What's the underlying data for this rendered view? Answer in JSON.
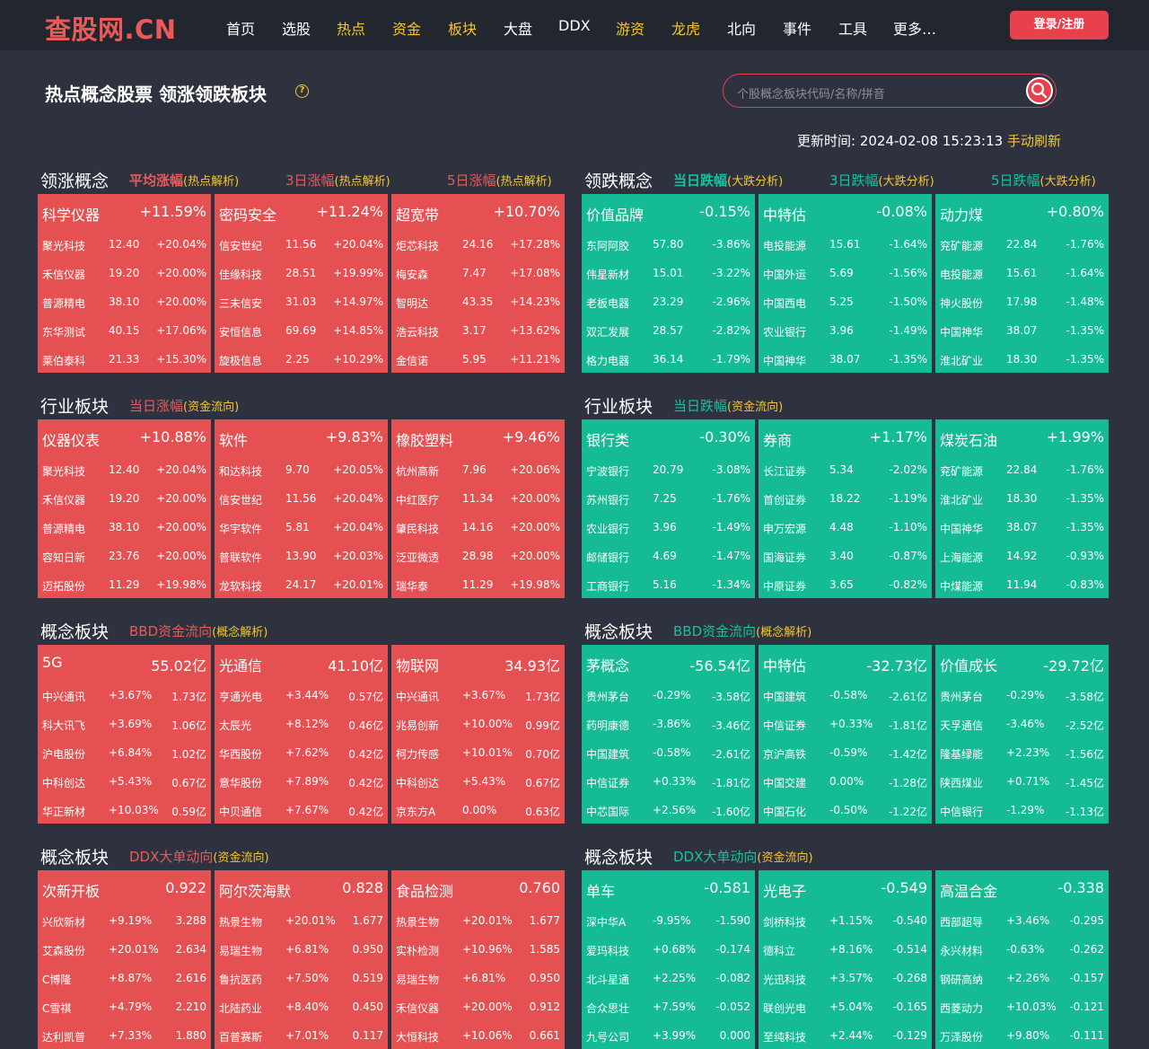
{
  "header": {
    "logo": "查股网.CN",
    "nav": [
      {
        "label": "首页",
        "hot": false
      },
      {
        "label": "选股",
        "hot": false
      },
      {
        "label": "热点",
        "hot": true
      },
      {
        "label": "资金",
        "hot": true
      },
      {
        "label": "板块",
        "hot": true
      },
      {
        "label": "大盘",
        "hot": false
      },
      {
        "label": "DDX",
        "hot": false
      },
      {
        "label": "游资",
        "hot": true
      },
      {
        "label": "龙虎",
        "hot": true
      },
      {
        "label": "北向",
        "hot": false
      },
      {
        "label": "事件",
        "hot": false
      },
      {
        "label": "工具",
        "hot": false
      },
      {
        "label": "更多…",
        "hot": false
      }
    ],
    "login": "登录/注册"
  },
  "page": {
    "title": "热点概念股票 领涨领跌板块",
    "help": "?",
    "search_placeholder": "个股概念板块代码/名称/拼音",
    "update_label": "更新时间:",
    "update_time": "2024-02-08 15:23:13",
    "refresh": "手动刷新"
  },
  "sections": [
    {
      "title": "领涨概念",
      "color": "r",
      "subs": [
        {
          "text": "平均涨幅",
          "bold": true,
          "link": "(热点解析)"
        },
        {
          "text": "3日涨幅",
          "bold": false,
          "link": "(热点解析)"
        },
        {
          "text": "5日涨幅",
          "bold": false,
          "link": "(热点解析)"
        }
      ],
      "cards": [
        {
          "name": "科学仪器",
          "value": "+11.59%",
          "rows": [
            [
              "聚光科技",
              "12.40",
              "+20.04%"
            ],
            [
              "禾信仪器",
              "19.20",
              "+20.00%"
            ],
            [
              "普源精电",
              "38.10",
              "+20.00%"
            ],
            [
              "东华测试",
              "40.15",
              "+17.06%"
            ],
            [
              "莱伯泰科",
              "21.33",
              "+15.30%"
            ]
          ]
        },
        {
          "name": "密码安全",
          "value": "+11.24%",
          "rows": [
            [
              "信安世纪",
              "11.56",
              "+20.04%"
            ],
            [
              "佳缘科技",
              "28.51",
              "+19.99%"
            ],
            [
              "三未信安",
              "31.03",
              "+14.97%"
            ],
            [
              "安恒信息",
              "69.69",
              "+14.85%"
            ],
            [
              "旋极信息",
              "2.25",
              "+10.29%"
            ]
          ]
        },
        {
          "name": "超宽带",
          "value": "+10.70%",
          "rows": [
            [
              "炬芯科技",
              "24.16",
              "+17.28%"
            ],
            [
              "梅安森",
              "7.47",
              "+17.08%"
            ],
            [
              "智明达",
              "43.35",
              "+14.23%"
            ],
            [
              "浩云科技",
              "3.17",
              "+13.62%"
            ],
            [
              "金信诺",
              "5.95",
              "+11.21%"
            ]
          ]
        }
      ]
    },
    {
      "title": "领跌概念",
      "color": "g",
      "subs": [
        {
          "text": "当日跌幅",
          "bold": true,
          "link": "(大跌分析)"
        },
        {
          "text": "3日跌幅",
          "bold": false,
          "link": "(大跌分析)"
        },
        {
          "text": "5日跌幅",
          "bold": false,
          "link": "(大跌分析)"
        }
      ],
      "cards": [
        {
          "name": "价值品牌",
          "value": "-0.15%",
          "rows": [
            [
              "东阿阿胶",
              "57.80",
              "-3.86%"
            ],
            [
              "伟星新材",
              "15.01",
              "-3.22%"
            ],
            [
              "老板电器",
              "23.29",
              "-2.96%"
            ],
            [
              "双汇发展",
              "28.57",
              "-2.82%"
            ],
            [
              "格力电器",
              "36.14",
              "-1.79%"
            ]
          ]
        },
        {
          "name": "中特估",
          "value": "-0.08%",
          "rows": [
            [
              "电投能源",
              "15.61",
              "-1.64%"
            ],
            [
              "中国外运",
              "5.69",
              "-1.56%"
            ],
            [
              "中国西电",
              "5.25",
              "-1.50%"
            ],
            [
              "农业银行",
              "3.96",
              "-1.49%"
            ],
            [
              "中国神华",
              "38.07",
              "-1.35%"
            ]
          ]
        },
        {
          "name": "动力煤",
          "value": "+0.80%",
          "rows": [
            [
              "兖矿能源",
              "22.84",
              "-1.76%"
            ],
            [
              "电投能源",
              "15.61",
              "-1.64%"
            ],
            [
              "神火股份",
              "17.98",
              "-1.48%"
            ],
            [
              "中国神华",
              "38.07",
              "-1.35%"
            ],
            [
              "淮北矿业",
              "18.30",
              "-1.35%"
            ]
          ]
        }
      ]
    },
    {
      "title": "行业板块",
      "color": "r",
      "subs": [
        {
          "text": "当日涨幅",
          "bold": false,
          "link": "(资金流向)"
        }
      ],
      "cards": [
        {
          "name": "仪器仪表",
          "value": "+10.88%",
          "rows": [
            [
              "聚光科技",
              "12.40",
              "+20.04%"
            ],
            [
              "禾信仪器",
              "19.20",
              "+20.00%"
            ],
            [
              "普源精电",
              "38.10",
              "+20.00%"
            ],
            [
              "容知日新",
              "23.76",
              "+20.00%"
            ],
            [
              "迈拓股份",
              "11.29",
              "+19.98%"
            ]
          ]
        },
        {
          "name": "软件",
          "value": "+9.83%",
          "rows": [
            [
              "和达科技",
              "9.70",
              "+20.05%"
            ],
            [
              "信安世纪",
              "11.56",
              "+20.04%"
            ],
            [
              "华宇软件",
              "5.81",
              "+20.04%"
            ],
            [
              "普联软件",
              "13.90",
              "+20.03%"
            ],
            [
              "龙软科技",
              "24.17",
              "+20.01%"
            ]
          ]
        },
        {
          "name": "橡胶塑料",
          "value": "+9.46%",
          "rows": [
            [
              "杭州高新",
              "7.96",
              "+20.06%"
            ],
            [
              "中红医疗",
              "11.34",
              "+20.00%"
            ],
            [
              "肇民科技",
              "14.16",
              "+20.00%"
            ],
            [
              "泛亚微透",
              "28.98",
              "+20.00%"
            ],
            [
              "瑞华泰",
              "11.29",
              "+19.98%"
            ]
          ]
        }
      ]
    },
    {
      "title": "行业板块",
      "color": "g",
      "subs": [
        {
          "text": "当日跌幅",
          "bold": false,
          "link": "(资金流向)"
        }
      ],
      "cards": [
        {
          "name": "银行类",
          "value": "-0.30%",
          "rows": [
            [
              "宁波银行",
              "20.79",
              "-3.08%"
            ],
            [
              "苏州银行",
              "7.25",
              "-1.76%"
            ],
            [
              "农业银行",
              "3.96",
              "-1.49%"
            ],
            [
              "邮储银行",
              "4.69",
              "-1.47%"
            ],
            [
              "工商银行",
              "5.16",
              "-1.34%"
            ]
          ]
        },
        {
          "name": "券商",
          "value": "+1.17%",
          "rows": [
            [
              "长江证券",
              "5.34",
              "-2.02%"
            ],
            [
              "首创证券",
              "18.22",
              "-1.19%"
            ],
            [
              "申万宏源",
              "4.48",
              "-1.10%"
            ],
            [
              "国海证券",
              "3.40",
              "-0.87%"
            ],
            [
              "中原证券",
              "3.65",
              "-0.82%"
            ]
          ]
        },
        {
          "name": "煤炭石油",
          "value": "+1.99%",
          "rows": [
            [
              "兖矿能源",
              "22.84",
              "-1.76%"
            ],
            [
              "淮北矿业",
              "18.30",
              "-1.35%"
            ],
            [
              "中国神华",
              "38.07",
              "-1.35%"
            ],
            [
              "上海能源",
              "14.92",
              "-0.93%"
            ],
            [
              "中煤能源",
              "11.94",
              "-0.83%"
            ]
          ]
        }
      ]
    },
    {
      "title": "概念板块",
      "color": "r",
      "subs": [
        {
          "text": "BBD资金流向",
          "bold": false,
          "link": "(概念解析)"
        }
      ],
      "cards": [
        {
          "name": "5G",
          "value": "55.02亿",
          "rows": [
            [
              "中兴通讯",
              "+3.67%",
              "1.73亿"
            ],
            [
              "科大讯飞",
              "+3.69%",
              "1.06亿"
            ],
            [
              "沪电股份",
              "+6.84%",
              "1.02亿"
            ],
            [
              "中科创达",
              "+5.43%",
              "0.67亿"
            ],
            [
              "华正新材",
              "+10.03%",
              "0.59亿"
            ]
          ]
        },
        {
          "name": "光通信",
          "value": "41.10亿",
          "rows": [
            [
              "亨通光电",
              "+3.44%",
              "0.57亿"
            ],
            [
              "太辰光",
              "+8.12%",
              "0.46亿"
            ],
            [
              "华西股份",
              "+7.62%",
              "0.42亿"
            ],
            [
              "意华股份",
              "+7.89%",
              "0.42亿"
            ],
            [
              "中贝通信",
              "+7.67%",
              "0.42亿"
            ]
          ]
        },
        {
          "name": "物联网",
          "value": "34.93亿",
          "rows": [
            [
              "中兴通讯",
              "+3.67%",
              "1.73亿"
            ],
            [
              "兆易创新",
              "+10.00%",
              "0.99亿"
            ],
            [
              "柯力传感",
              "+10.01%",
              "0.70亿"
            ],
            [
              "中科创达",
              "+5.43%",
              "0.67亿"
            ],
            [
              "京东方A",
              "0.00%",
              "0.63亿"
            ]
          ]
        }
      ]
    },
    {
      "title": "概念板块",
      "color": "g",
      "subs": [
        {
          "text": "BBD资金流向",
          "bold": false,
          "link": "(概念解析)"
        }
      ],
      "cards": [
        {
          "name": "茅概念",
          "value": "-56.54亿",
          "rows": [
            [
              "贵州茅台",
              "-0.29%",
              "-3.58亿"
            ],
            [
              "药明康德",
              "-3.86%",
              "-3.46亿"
            ],
            [
              "中国建筑",
              "-0.58%",
              "-2.61亿"
            ],
            [
              "中信证券",
              "+0.33%",
              "-1.81亿"
            ],
            [
              "中芯国际",
              "+2.56%",
              "-1.60亿"
            ]
          ]
        },
        {
          "name": "中特估",
          "value": "-32.73亿",
          "rows": [
            [
              "中国建筑",
              "-0.58%",
              "-2.61亿"
            ],
            [
              "中信证券",
              "+0.33%",
              "-1.81亿"
            ],
            [
              "京沪高铁",
              "-0.59%",
              "-1.42亿"
            ],
            [
              "中国交建",
              "0.00%",
              "-1.28亿"
            ],
            [
              "中国石化",
              "-0.50%",
              "-1.22亿"
            ]
          ]
        },
        {
          "name": "价值成长",
          "value": "-29.72亿",
          "rows": [
            [
              "贵州茅台",
              "-0.29%",
              "-3.58亿"
            ],
            [
              "天孚通信",
              "-3.46%",
              "-2.52亿"
            ],
            [
              "隆基绿能",
              "+2.23%",
              "-1.56亿"
            ],
            [
              "陕西煤业",
              "+0.71%",
              "-1.45亿"
            ],
            [
              "中信银行",
              "-1.29%",
              "-1.13亿"
            ]
          ]
        }
      ]
    },
    {
      "title": "概念板块",
      "color": "r",
      "subs": [
        {
          "text": "DDX大单动向",
          "bold": false,
          "link": "(资金流向)"
        }
      ],
      "cards": [
        {
          "name": "次新开板",
          "value": "0.922",
          "rows": [
            [
              "兴欣新材",
              "+9.19%",
              "3.288"
            ],
            [
              "艾森股份",
              "+20.01%",
              "2.634"
            ],
            [
              "C博隆",
              "+8.87%",
              "2.616"
            ],
            [
              "C雪祺",
              "+4.79%",
              "2.210"
            ],
            [
              "达利凯普",
              "+7.33%",
              "1.880"
            ]
          ]
        },
        {
          "name": "阿尔茨海默",
          "value": "0.828",
          "rows": [
            [
              "热景生物",
              "+20.01%",
              "1.677"
            ],
            [
              "易瑞生物",
              "+6.81%",
              "0.950"
            ],
            [
              "鲁抗医药",
              "+7.50%",
              "0.519"
            ],
            [
              "北陆药业",
              "+8.40%",
              "0.450"
            ],
            [
              "百普赛斯",
              "+7.01%",
              "0.117"
            ]
          ]
        },
        {
          "name": "食品检测",
          "value": "0.760",
          "rows": [
            [
              "热景生物",
              "+20.01%",
              "1.677"
            ],
            [
              "实朴检测",
              "+10.96%",
              "1.585"
            ],
            [
              "易瑞生物",
              "+6.81%",
              "0.950"
            ],
            [
              "禾信仪器",
              "+20.00%",
              "0.912"
            ],
            [
              "大恒科技",
              "+10.06%",
              "0.661"
            ]
          ]
        }
      ]
    },
    {
      "title": "概念板块",
      "color": "g",
      "subs": [
        {
          "text": "DDX大单动向",
          "bold": false,
          "link": "(资金流向)"
        }
      ],
      "cards": [
        {
          "name": "单车",
          "value": "-0.581",
          "rows": [
            [
              "深中华A",
              "-9.95%",
              "-1.590"
            ],
            [
              "爱玛科技",
              "+0.68%",
              "-0.174"
            ],
            [
              "北斗星通",
              "+2.25%",
              "-0.082"
            ],
            [
              "合众思壮",
              "+7.59%",
              "-0.052"
            ],
            [
              "九号公司",
              "+3.99%",
              "0.000"
            ]
          ]
        },
        {
          "name": "光电子",
          "value": "-0.549",
          "rows": [
            [
              "剑桥科技",
              "+1.15%",
              "-0.540"
            ],
            [
              "德科立",
              "+8.16%",
              "-0.514"
            ],
            [
              "光迅科技",
              "+3.57%",
              "-0.268"
            ],
            [
              "联创光电",
              "+5.04%",
              "-0.165"
            ],
            [
              "至纯科技",
              "+2.44%",
              "-0.129"
            ]
          ]
        },
        {
          "name": "高温合金",
          "value": "-0.338",
          "rows": [
            [
              "西部超导",
              "+3.46%",
              "-0.295"
            ],
            [
              "永兴材料",
              "-0.63%",
              "-0.262"
            ],
            [
              "钢研高纳",
              "+2.26%",
              "-0.157"
            ],
            [
              "西菱动力",
              "+10.03%",
              "-0.121"
            ],
            [
              "万泽股份",
              "+9.80%",
              "-0.111"
            ]
          ]
        }
      ]
    }
  ]
}
